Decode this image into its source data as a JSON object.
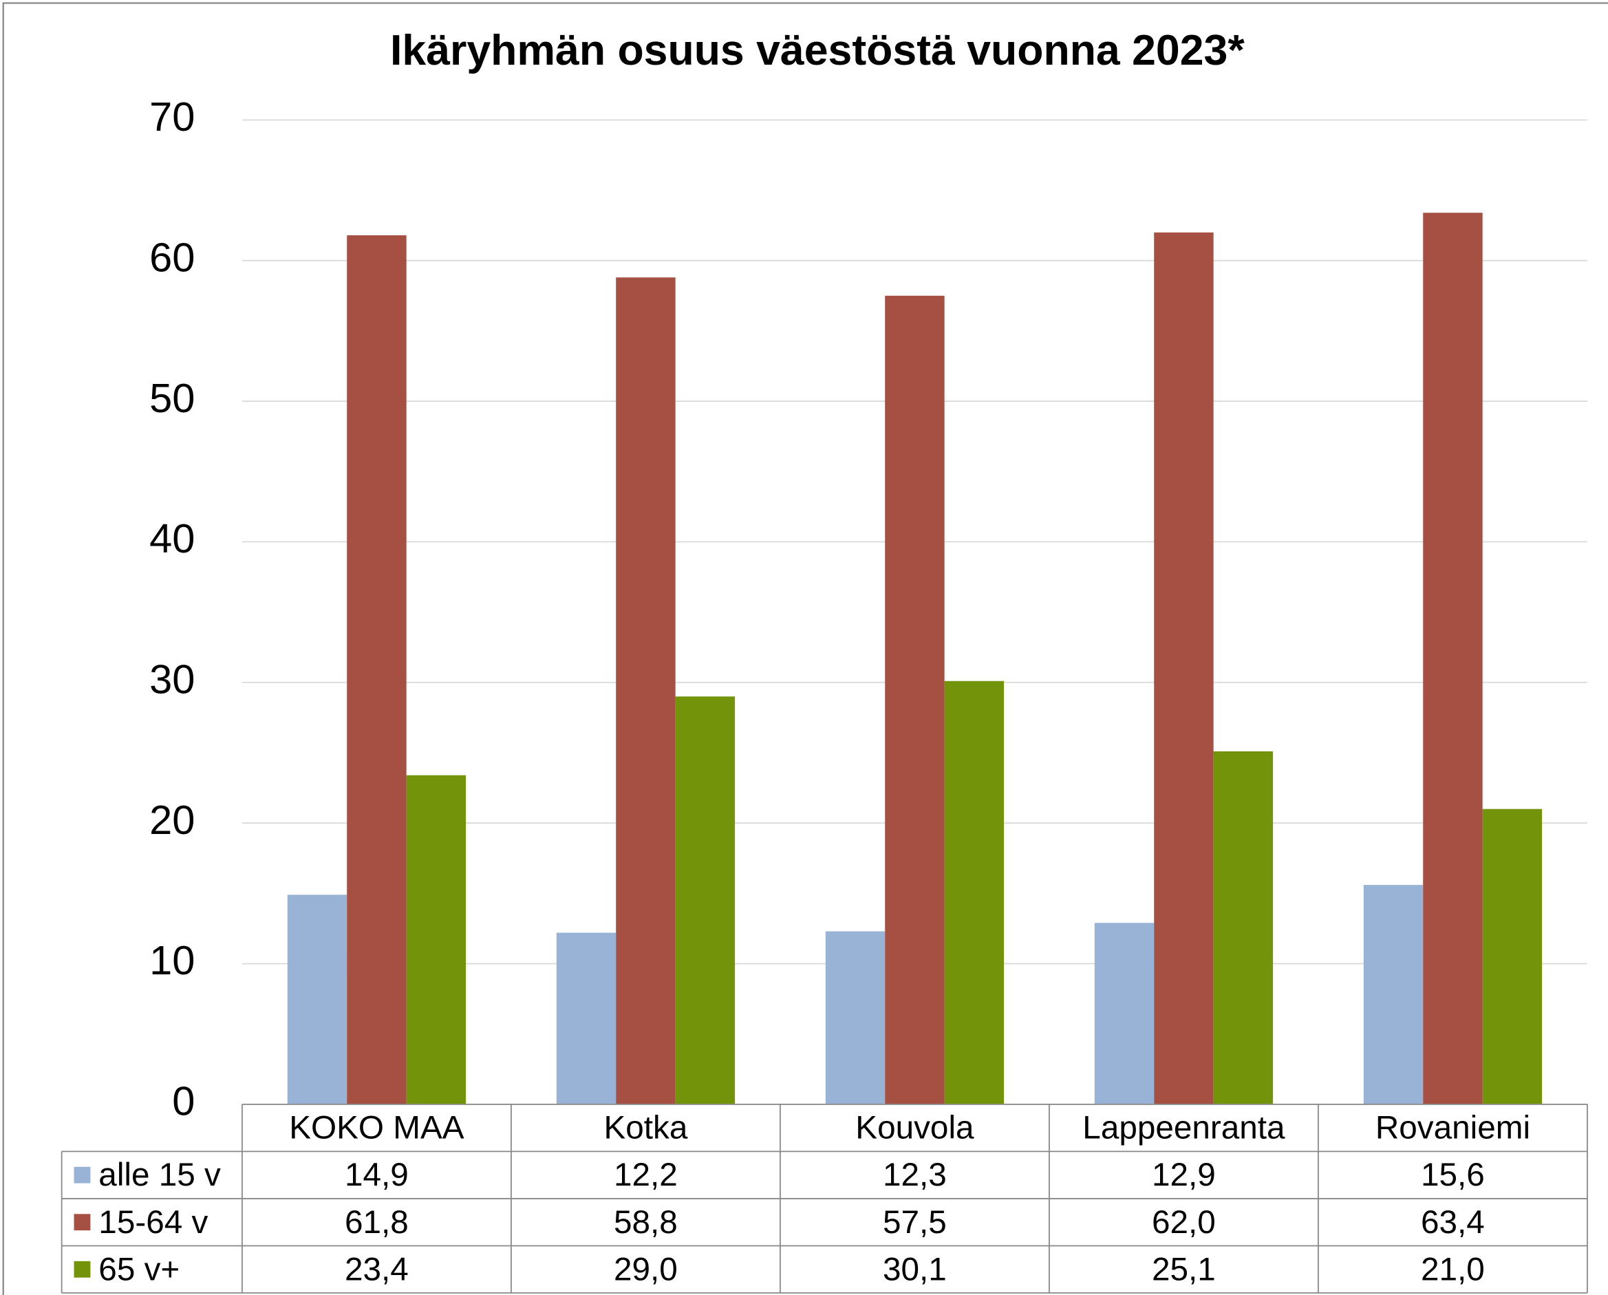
{
  "chart_data": {
    "type": "bar",
    "title": "Ikäryhmän osuus väestöstä vuonna 2023*",
    "categories": [
      "KOKO MAA",
      "Kotka",
      "Kouvola",
      "Lappeenranta",
      "Rovaniemi"
    ],
    "series": [
      {
        "name": "alle 15 v",
        "color": "#98b3d5",
        "values": [
          14.9,
          12.2,
          12.3,
          12.9,
          15.6
        ],
        "value_labels": [
          "14,9",
          "12,2",
          "12,3",
          "12,9",
          "15,6"
        ]
      },
      {
        "name": "15-64 v",
        "color": "#a65044",
        "values": [
          61.8,
          58.8,
          57.5,
          62.0,
          63.4
        ],
        "value_labels": [
          "61,8",
          "58,8",
          "57,5",
          "62,0",
          "63,4"
        ]
      },
      {
        "name": "65 v+",
        "color": "#72930a",
        "values": [
          23.4,
          29.0,
          30.1,
          25.1,
          21.0
        ],
        "value_labels": [
          "23,4",
          "29,0",
          "30,1",
          "25,1",
          "21,0"
        ]
      }
    ],
    "ylim": [
      0,
      70
    ],
    "yticks": [
      0,
      10,
      20,
      30,
      40,
      50,
      60,
      70
    ],
    "grid": true
  }
}
